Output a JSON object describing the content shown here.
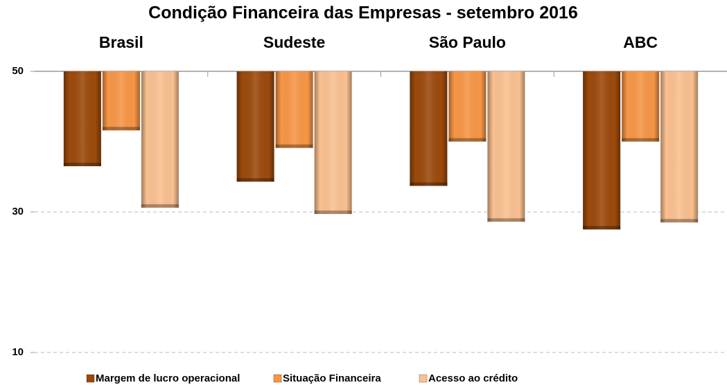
{
  "chart_data": {
    "type": "bar",
    "title": "Condição Financeira das Empresas - setembro 2016",
    "categories": [
      "Brasil",
      "Sudeste",
      "São Paulo",
      "ABC"
    ],
    "series": [
      {
        "name": "Margem de lucro operacional",
        "color": "#9c4a0c",
        "values": [
          36.5,
          34.3,
          33.7,
          27.5
        ]
      },
      {
        "name": "Situação Financeira",
        "color": "#f79646",
        "values": [
          41.6,
          39.1,
          40.0,
          40.0
        ]
      },
      {
        "name": "Acesso ao crédito",
        "color": "#fac090",
        "values": [
          30.6,
          29.7,
          28.6,
          28.5
        ]
      }
    ],
    "ylim": [
      10,
      50
    ],
    "yticks": [
      10,
      30,
      50
    ],
    "grid": true,
    "legend": "bottom"
  }
}
